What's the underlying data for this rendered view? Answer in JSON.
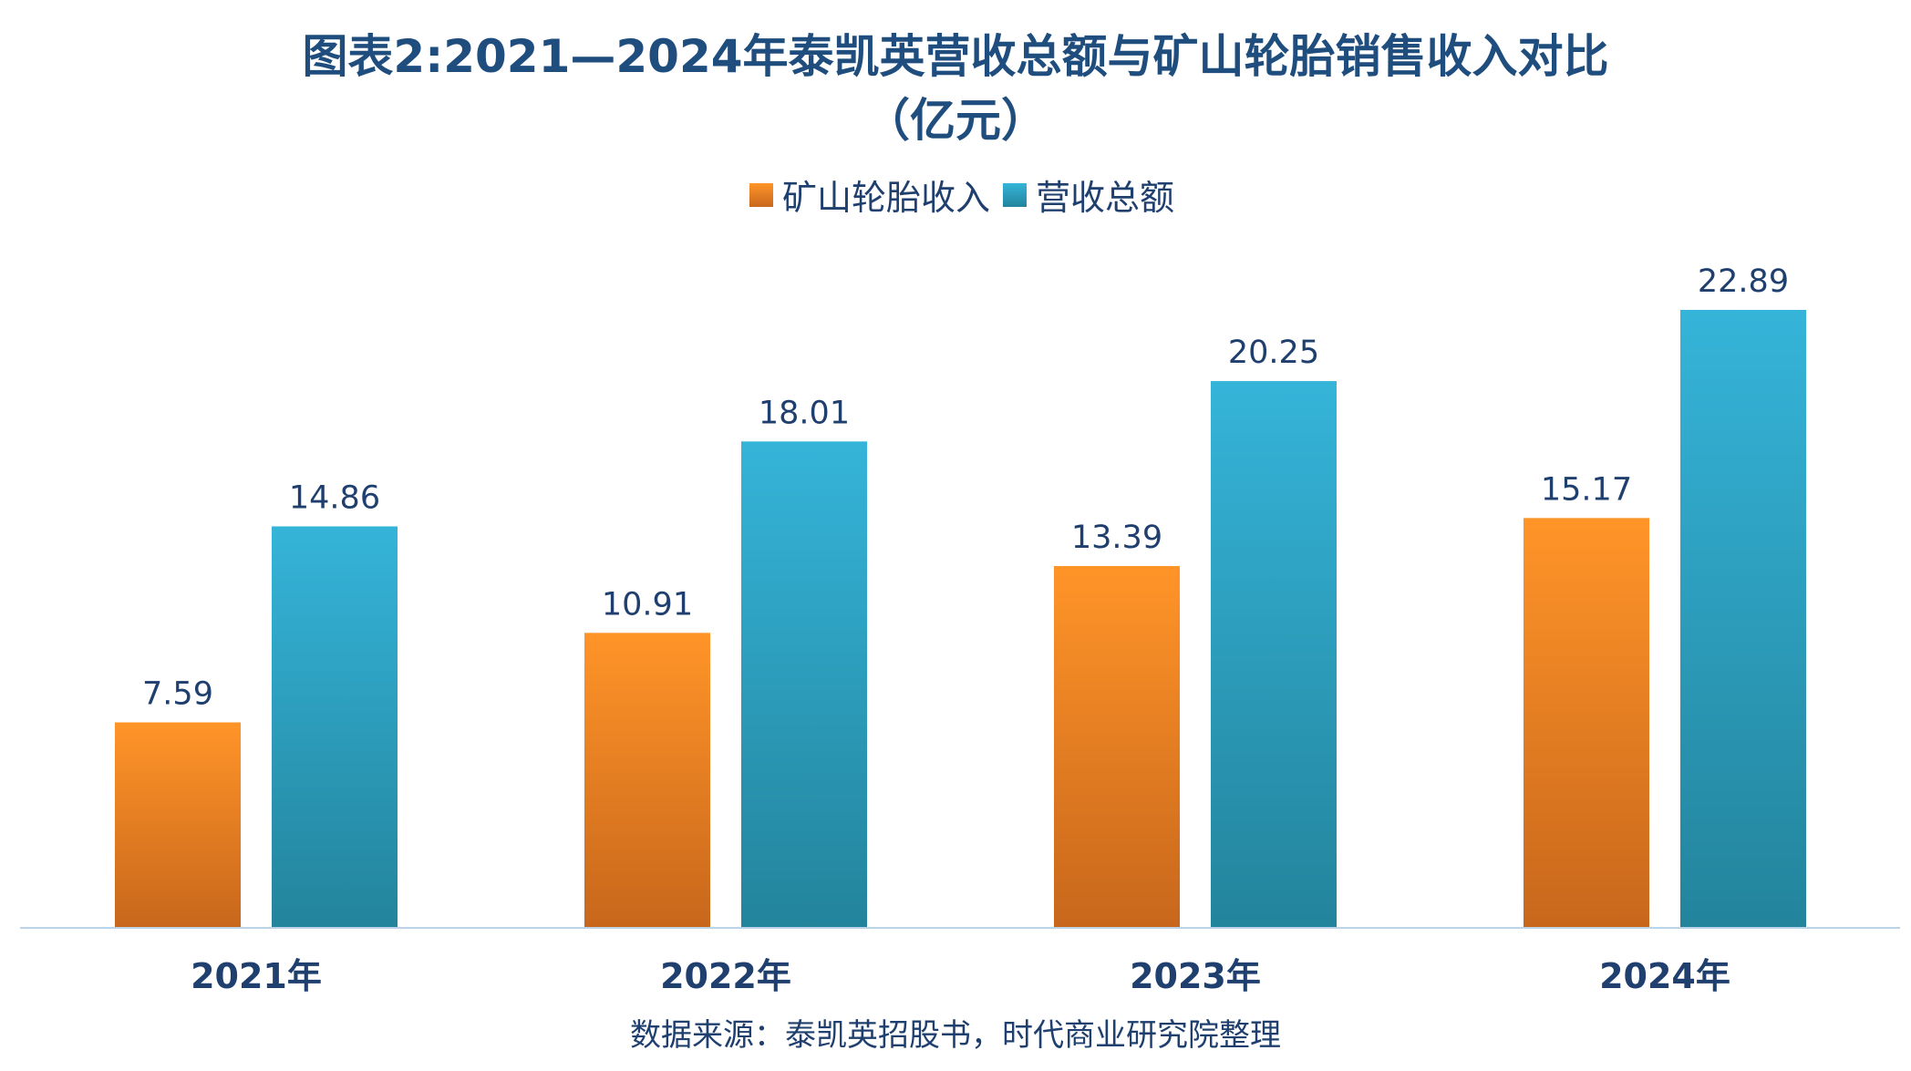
{
  "title_line1": "图表2:2021—2024年泰凯英营收总额与矿山轮胎销售收入对比",
  "title_line2": "（亿元）",
  "source": "数据来源：泰凯英招股书，时代商业研究院整理",
  "colors": {
    "orange_top": "#ff9428",
    "orange_bottom": "#c8671c",
    "blue_top": "#35b4d9",
    "blue_bottom": "#23849c",
    "axis": "#bcd4ea",
    "label": "#1f3f6e"
  },
  "chart_data": {
    "type": "bar",
    "title": "图表2:2021—2024年泰凯英营收总额与矿山轮胎销售收入对比（亿元）",
    "categories": [
      "2021年",
      "2022年",
      "2023年",
      "2024年"
    ],
    "series": [
      {
        "name": "矿山轮胎收入",
        "values": [
          7.59,
          10.91,
          13.39,
          15.17
        ],
        "labels": [
          "7.59",
          "10.91",
          "13.39",
          "15.17"
        ]
      },
      {
        "name": "营收总额",
        "values": [
          14.86,
          18.01,
          20.25,
          22.89
        ],
        "labels": [
          "14.86",
          "18.01",
          "20.25",
          "22.89"
        ]
      }
    ],
    "ylim": [
      0,
      23
    ],
    "legend": "top-center",
    "grid": false
  }
}
